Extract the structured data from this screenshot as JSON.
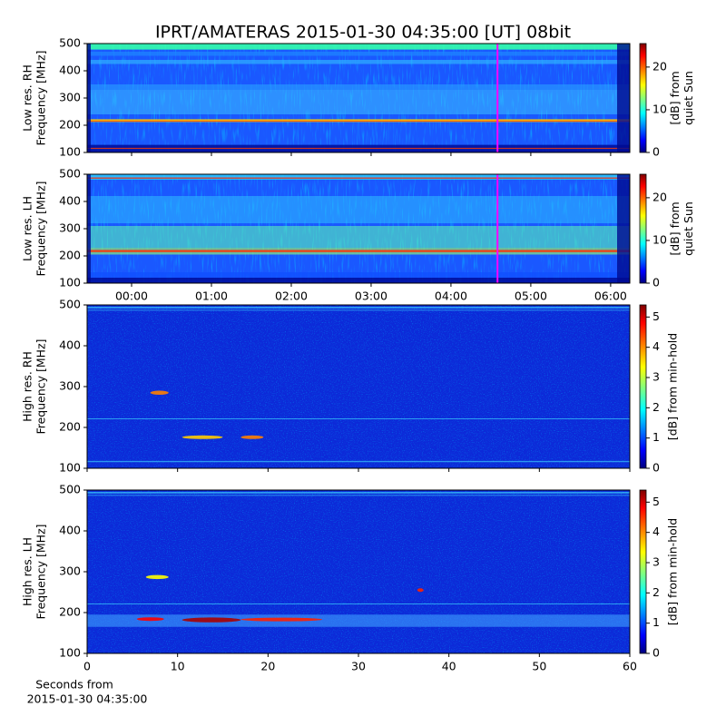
{
  "title": "IPRT/AMATERAS 2015-01-30 04:35:00 [UT]   08bit",
  "chart_data": [
    {
      "type": "heatmap",
      "colormap": "jet",
      "ylabel": [
        "Low res. RH",
        "Frequency [MHz]"
      ],
      "ylim": [
        100,
        500
      ],
      "yticks": [
        100,
        200,
        300,
        400,
        500
      ],
      "xlim": [
        -0.557,
        6.24
      ],
      "clim": [
        0,
        25.5
      ],
      "cticks": [
        0,
        10,
        20
      ],
      "clabel": [
        "[dB] from",
        "quiet Sun"
      ],
      "marker_x": 4.583,
      "marker_color": "#ff00ff"
    },
    {
      "type": "heatmap",
      "colormap": "jet",
      "ylabel": [
        "Low res. LH",
        "Frequency [MHz]"
      ],
      "ylim": [
        100,
        500
      ],
      "yticks": [
        100,
        200,
        300,
        400,
        500
      ],
      "xlim": [
        -0.557,
        6.24
      ],
      "xticks": [
        {
          "value": 0,
          "label": "00:00"
        },
        {
          "value": 1,
          "label": "01:00"
        },
        {
          "value": 2,
          "label": "02:00"
        },
        {
          "value": 3,
          "label": "03:00"
        },
        {
          "value": 4,
          "label": "04:00"
        },
        {
          "value": 5,
          "label": "05:00"
        },
        {
          "value": 6,
          "label": "06:00"
        }
      ],
      "clim": [
        0,
        25.5
      ],
      "cticks": [
        0,
        10,
        20
      ],
      "clabel": [
        "[dB] from",
        "quiet Sun"
      ],
      "marker_x": 4.583,
      "marker_color": "#ff00ff"
    },
    {
      "type": "heatmap",
      "colormap": "jet",
      "ylabel": [
        "High res. RH",
        "Frequency [MHz]"
      ],
      "ylim": [
        100,
        500
      ],
      "yticks": [
        100,
        200,
        300,
        400,
        500
      ],
      "xlim": [
        0,
        60
      ],
      "clim": [
        0,
        5.4
      ],
      "cticks": [
        0,
        1,
        2,
        3,
        4,
        5
      ],
      "clabel": [
        "[dB] from min-hold"
      ]
    },
    {
      "type": "heatmap",
      "colormap": "jet",
      "ylabel": [
        "High res. LH",
        "Frequency [MHz]"
      ],
      "ylim": [
        100,
        500
      ],
      "yticks": [
        100,
        200,
        300,
        400,
        500
      ],
      "xlim": [
        0,
        60
      ],
      "xticks": [
        0,
        10,
        20,
        30,
        40,
        50,
        60
      ],
      "xlabel": [
        "Seconds from",
        "2015-01-30 04:35:00"
      ],
      "clim": [
        0,
        5.4
      ],
      "cticks": [
        0,
        1,
        2,
        3,
        4,
        5
      ],
      "clabel": [
        "[dB] from min-hold"
      ]
    }
  ]
}
